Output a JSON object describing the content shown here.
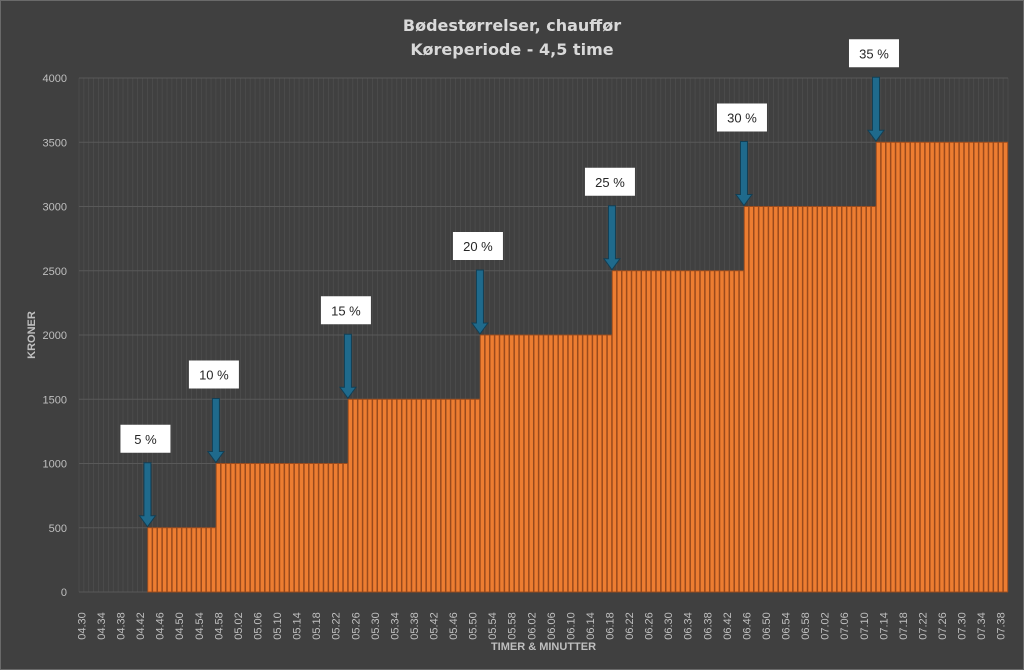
{
  "chart_data": {
    "type": "bar",
    "title": "Bødestørrelser, chauffør",
    "subtitle": "Køreperiode - 4,5 time",
    "xlabel": "TIMER & MINUTTER",
    "ylabel": "KRONER",
    "ylim": [
      0,
      4000
    ],
    "yticks": [
      0,
      500,
      1000,
      1500,
      2000,
      2500,
      3000,
      3500,
      4000
    ],
    "x_start": "04.30",
    "x_end": "07.39",
    "x_step_minutes": 1,
    "x_tick_label_every_minutes": 4,
    "grid": true,
    "legend": "none",
    "steps": [
      {
        "from": "04.30",
        "to": "04.43",
        "value": 0
      },
      {
        "from": "04.44",
        "to": "04.57",
        "value": 500
      },
      {
        "from": "04.58",
        "to": "05.24",
        "value": 1000
      },
      {
        "from": "05.25",
        "to": "05.51",
        "value": 1500
      },
      {
        "from": "05.52",
        "to": "06.18",
        "value": 2000
      },
      {
        "from": "06.19",
        "to": "06.45",
        "value": 2500
      },
      {
        "from": "06.46",
        "to": "07.12",
        "value": 3000
      },
      {
        "from": "07.13",
        "to": "07.39",
        "value": 3500
      }
    ],
    "annotations": [
      {
        "label": "5 %",
        "at": "04.44",
        "value": 500
      },
      {
        "label": "10 %",
        "at": "04.58",
        "value": 1000
      },
      {
        "label": "15 %",
        "at": "05.25",
        "value": 1500
      },
      {
        "label": "20 %",
        "at": "05.52",
        "value": 2000
      },
      {
        "label": "25 %",
        "at": "06.19",
        "value": 2500
      },
      {
        "label": "30 %",
        "at": "06.46",
        "value": 3000
      },
      {
        "label": "35 %",
        "at": "07.13",
        "value": 3500
      }
    ],
    "colors": {
      "bar": "#ED7D31",
      "bar_edge": "#9a4a1c",
      "arrow": "#1F6A8C",
      "background": "#404040",
      "grid": "#595959",
      "text": "#bfbfbf"
    }
  }
}
